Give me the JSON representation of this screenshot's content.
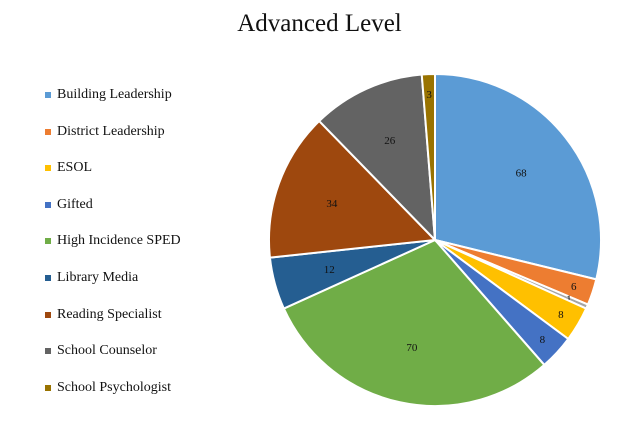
{
  "chart_data": {
    "type": "pie",
    "title": "Advanced Level",
    "legend_position": "left",
    "start_angle_deg": 0,
    "direction": "clockwise",
    "slices": [
      {
        "label": "Building Leadership",
        "value": 68,
        "color": "#5B9BD5"
      },
      {
        "label": "District Leadership",
        "value": 6,
        "color": "#ED7D31"
      },
      {
        "label": "ESOL",
        "value": 8,
        "color": "#FFC000"
      },
      {
        "label": "Gifted",
        "value": 8,
        "color": "#4472C4"
      },
      {
        "label": "High Incidence SPED",
        "value": 70,
        "color": "#70AD47"
      },
      {
        "label": "Library Media",
        "value": 12,
        "color": "#255E91"
      },
      {
        "label": "Reading Specialist",
        "value": 34,
        "color": "#9E480E"
      },
      {
        "label": "School Counselor",
        "value": 26,
        "color": "#636363"
      },
      {
        "label": "School Psychologist",
        "value": 3,
        "color": "#997300"
      }
    ],
    "extra_slices": [
      {
        "value": 1,
        "color": "#A5A5A5",
        "after_index": 1
      }
    ]
  }
}
